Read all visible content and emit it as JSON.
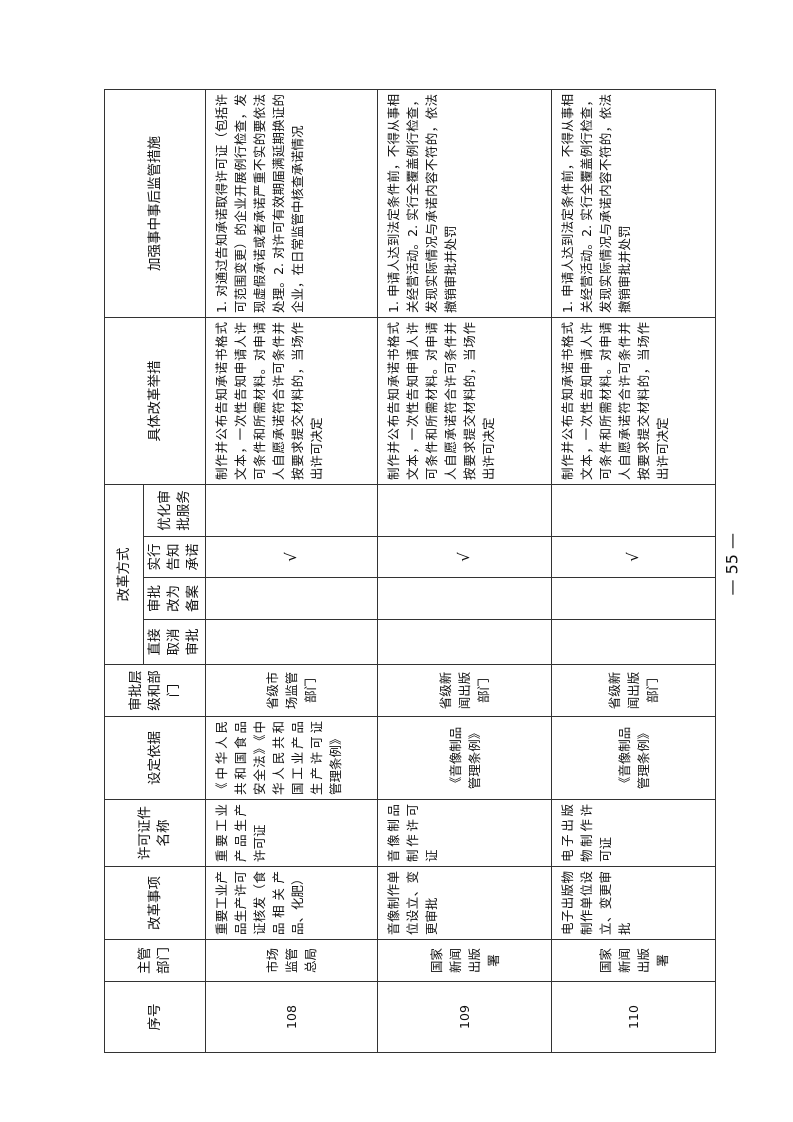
{
  "headers": {
    "seq": "序号",
    "dept": "主管部门",
    "item": "改革事项",
    "license": "许可证件名称",
    "basis": "设定依据",
    "level": "审批层级和部门",
    "mode_group": "改革方式",
    "mode_cancel": "直接取消审批",
    "mode_record": "审批改为备案",
    "mode_notify": "实行告知承诺",
    "mode_optimize": "优化审批服务",
    "measures": "具体改革举措",
    "supervision": "加强事中事后监管措施"
  },
  "rows": [
    {
      "seq": "108",
      "dept": "市场监管总局",
      "item": "重要工业产品生产许可证核发（食品相关产品、化肥）",
      "license": "重要工业产品生产许可证",
      "basis": "《中华人民共和国食品安全法》《中华人民共和国工业产品生产许可证管理条例》",
      "level": "省级市场监管部门",
      "mode_cancel": "",
      "mode_record": "",
      "mode_notify": "√",
      "mode_optimize": "",
      "measures": "制作并公布告知承诺书格式文本，一次性告知申请人许可条件和所需材料。对申请人自愿承诺符合许可条件并按要求提交材料的，当场作出许可决定",
      "supervision": "1. 对通过告知承诺取得许可证（包括许可范围变更）的企业开展例行检查，发现虚假承诺或者承诺严重不实的要依法处理。2. 对许可有效期届满延期换证的企业，在日常监管中核查承诺情况"
    },
    {
      "seq": "109",
      "dept": "国家新闻出版署",
      "item": "音像制作单位设立、变更审批",
      "license": "音像制品制作许可证",
      "basis": "《音像制品管理条例》",
      "level": "省级新闻出版部门",
      "mode_cancel": "",
      "mode_record": "",
      "mode_notify": "√",
      "mode_optimize": "",
      "measures": "制作并公布告知承诺书格式文本，一次性告知申请人许可条件和所需材料。对申请人自愿承诺符合许可条件并按要求提交材料的，当场作出许可决定",
      "supervision": "1. 申请人达到法定条件前，不得从事相关经营活动。2. 实行全覆盖例行检查，发现实际情况与承诺内容不符的，依法撤销审批并处罚"
    },
    {
      "seq": "110",
      "dept": "国家新闻出版署",
      "item": "电子出版物制作单位设立、变更审批",
      "license": "电子出版物制作许可证",
      "basis": "《音像制品管理条例》",
      "level": "省级新闻出版部门",
      "mode_cancel": "",
      "mode_record": "",
      "mode_notify": "√",
      "mode_optimize": "",
      "measures": "制作并公布告知承诺书格式文本，一次性告知申请人许可条件和所需材料。对申请人自愿承诺符合许可条件并按要求提交材料的，当场作出许可决定",
      "supervision": "1. 申请人达到法定条件前，不得从事相关经营活动。2. 实行全覆盖例行检查，发现实际情况与承诺内容不符的，依法撤销审批并处罚"
    }
  ],
  "page_number": "— 55 —"
}
